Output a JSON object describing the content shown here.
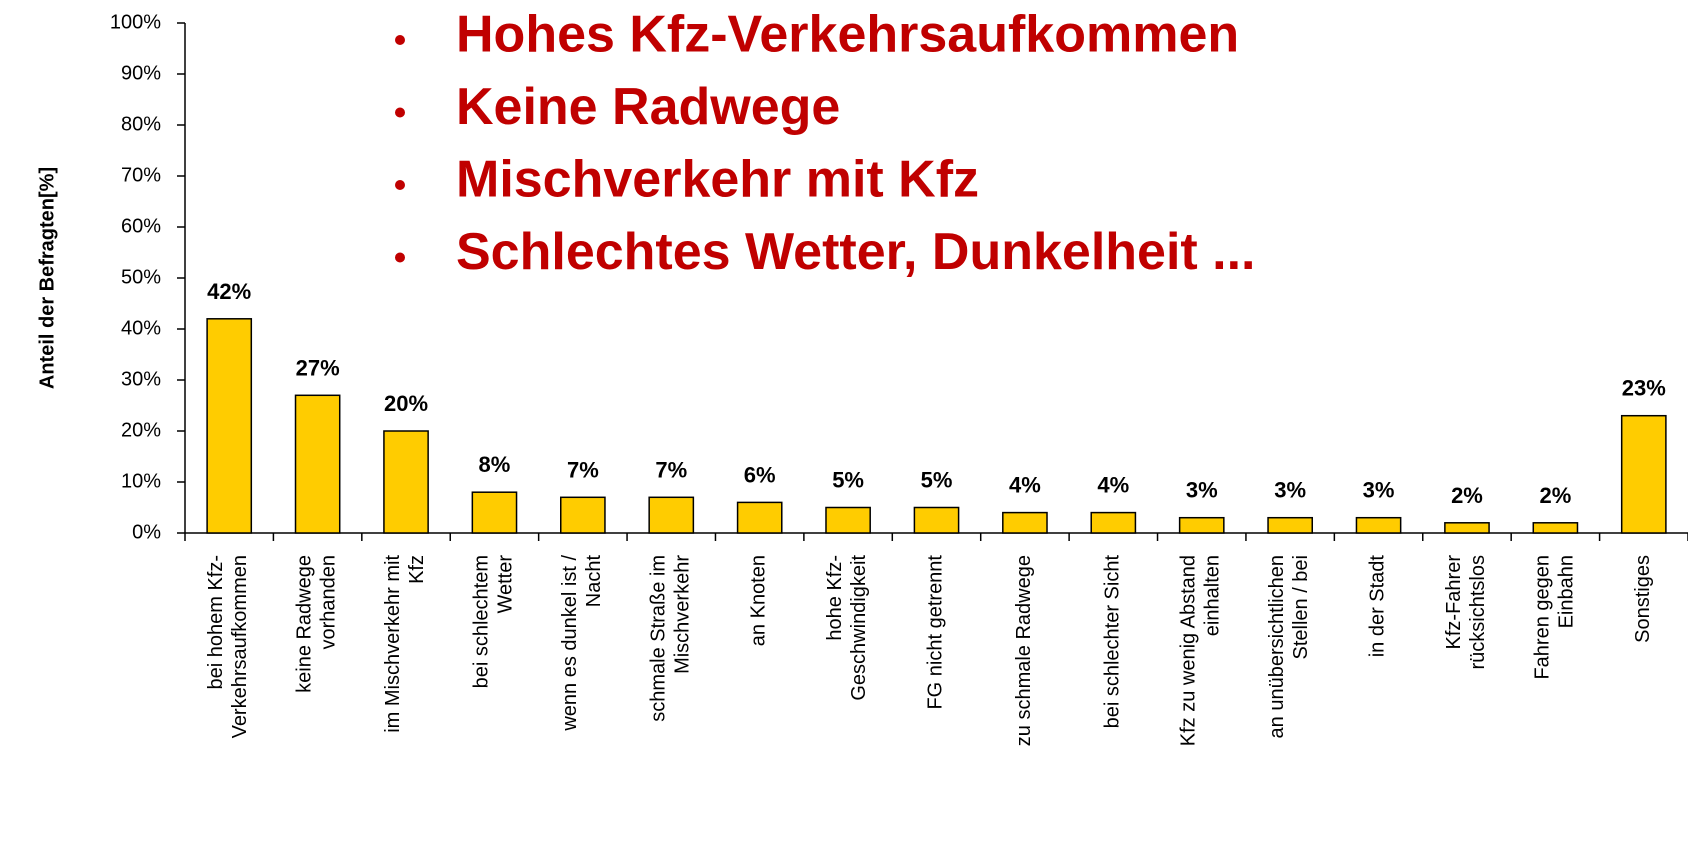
{
  "chart_data": {
    "type": "bar",
    "y_label": "Anteil der Befragten[%]",
    "annotations": [
      "Hohes Kfz-Verkehrsaufkommen",
      "Keine Radwege",
      "Mischverkehr mit Kfz",
      "Schlechtes Wetter, Dunkelheit ..."
    ],
    "categories": [
      "bei hohem Kfz-\nVerkehrsaufkommen",
      "keine Radwege\nvorhanden",
      "im Mischverkehr mit\nKfz",
      "bei schlechtem\nWetter",
      "wenn es dunkel ist /\nNacht",
      "schmale Straße im\nMischverkehr",
      "an Knoten",
      "hohe Kfz-\nGeschwindigkeit",
      "FG nicht getrennt",
      "zu schmale Radwege",
      "bei schlechter Sicht",
      "Kfz zu wenig Abstand\neinhalten",
      "an unübersichtlichen\nStellen / bei",
      "in der Stadt",
      "Kfz-Fahrer\nrücksichtslos",
      "Fahren gegen\nEinbahn",
      "Sonstiges"
    ],
    "values": [
      42,
      27,
      20,
      8,
      7,
      7,
      6,
      5,
      5,
      4,
      4,
      3,
      3,
      3,
      2,
      2,
      23
    ],
    "value_labels": [
      "42%",
      "27%",
      "20%",
      "8%",
      "7%",
      "7%",
      "6%",
      "5%",
      "5%",
      "4%",
      "4%",
      "3%",
      "3%",
      "3%",
      "2%",
      "2%",
      "23%"
    ],
    "color": "#ffcc00",
    "ylim": [
      0,
      100
    ],
    "yticks": [
      {
        "value": 0,
        "label": "0%"
      },
      {
        "value": 10,
        "label": "10%"
      },
      {
        "value": 20,
        "label": "20%"
      },
      {
        "value": 30,
        "label": "30%"
      },
      {
        "value": 40,
        "label": "40%"
      },
      {
        "value": 50,
        "label": "50%"
      },
      {
        "value": 60,
        "label": "60%"
      },
      {
        "value": 70,
        "label": "70%"
      },
      {
        "value": 80,
        "label": "80%"
      },
      {
        "value": 90,
        "label": "90%"
      },
      {
        "value": 100,
        "label": "100%"
      }
    ],
    "grid": false
  }
}
